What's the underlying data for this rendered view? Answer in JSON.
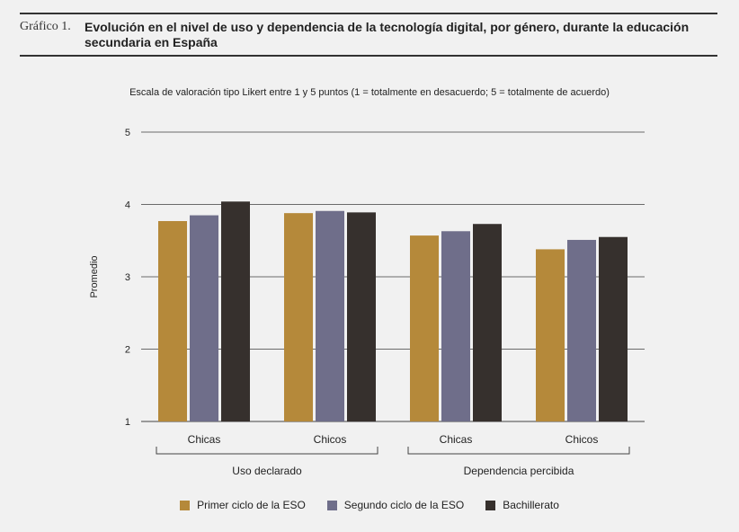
{
  "header": {
    "figure_label": "Gráfico 1.",
    "title": "Evolución en el nivel de uso y dependencia de la tecnología digital, por género, durante la educación secundaria en España"
  },
  "chart_data": {
    "type": "bar",
    "subtitle": "Escala de valoración tipo Likert entre 1 y 5 puntos (1 = totalmente en desacuerdo; 5 = totalmente de acuerdo)",
    "ylabel": "Promedio",
    "ylim": [
      1,
      5
    ],
    "yticks": [
      1,
      2,
      3,
      4,
      5
    ],
    "categories": [
      "Chicas",
      "Chicos",
      "Chicas",
      "Chicos"
    ],
    "groups": [
      {
        "label": "Uso declarado",
        "categories": [
          0,
          1
        ]
      },
      {
        "label": "Dependencia percibida",
        "categories": [
          2,
          3
        ]
      }
    ],
    "series": [
      {
        "name": "Primer ciclo de la ESO",
        "color": "#b5893a",
        "values": [
          3.77,
          3.88,
          3.57,
          3.38
        ]
      },
      {
        "name": "Segundo ciclo de la ESO",
        "color": "#6f6e8a",
        "values": [
          3.85,
          3.91,
          3.63,
          3.51
        ]
      },
      {
        "name": "Bachillerato",
        "color": "#36302d",
        "values": [
          4.04,
          3.89,
          3.73,
          3.55
        ]
      }
    ],
    "grid": true,
    "legend": "bottom"
  }
}
